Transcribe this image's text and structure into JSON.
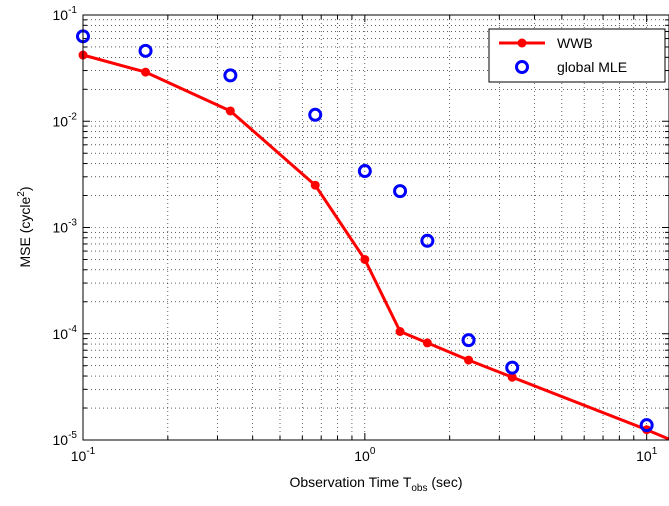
{
  "chart_data": {
    "type": "line",
    "xscale": "log",
    "yscale": "log",
    "xlim": [
      0.1,
      12
    ],
    "ylim": [
      1e-05,
      0.1
    ],
    "grid": true,
    "legend_position": "top-right",
    "xlabel": "Observation Time T",
    "xlabel_subscript": "obs",
    "xlabel_unit": "(sec)",
    "ylabel": "MSE (cycle",
    "ylabel_superscript": "2",
    "ylabel_close": ")",
    "x_ticks": [
      {
        "base": "10",
        "exp": "-1",
        "value": 0.1
      },
      {
        "base": "10",
        "exp": "0",
        "value": 1
      },
      {
        "base": "10",
        "exp": "1",
        "value": 10
      }
    ],
    "y_ticks": [
      {
        "base": "10",
        "exp": "-5",
        "value": 1e-05
      },
      {
        "base": "10",
        "exp": "-4",
        "value": 0.0001
      },
      {
        "base": "10",
        "exp": "-3",
        "value": 0.001
      },
      {
        "base": "10",
        "exp": "-2",
        "value": 0.01
      },
      {
        "base": "10",
        "exp": "-1",
        "value": 0.1
      }
    ],
    "series": [
      {
        "name": "WWB",
        "style": "line-dot",
        "color": "#ff0000",
        "x": [
          0.1,
          0.1667,
          0.3333,
          0.6667,
          1.0,
          1.3333,
          1.6667,
          2.3333,
          3.3333,
          10.0,
          12.0
        ],
        "y": [
          0.042,
          0.029,
          0.0125,
          0.0025,
          0.0005,
          0.000105,
          8.2e-05,
          5.65e-05,
          3.9e-05,
          1.25e-05,
          1.02e-05
        ],
        "marker_count": 10
      },
      {
        "name": "global MLE",
        "style": "circle",
        "color": "#0000ff",
        "x": [
          0.1,
          0.1667,
          0.3333,
          0.6667,
          1.0,
          1.3333,
          1.6667,
          2.3333,
          3.3333,
          10.0
        ],
        "y": [
          0.063,
          0.046,
          0.027,
          0.0115,
          0.0034,
          0.0022,
          0.00075,
          8.7e-05,
          4.8e-05,
          1.38e-05
        ]
      }
    ]
  }
}
